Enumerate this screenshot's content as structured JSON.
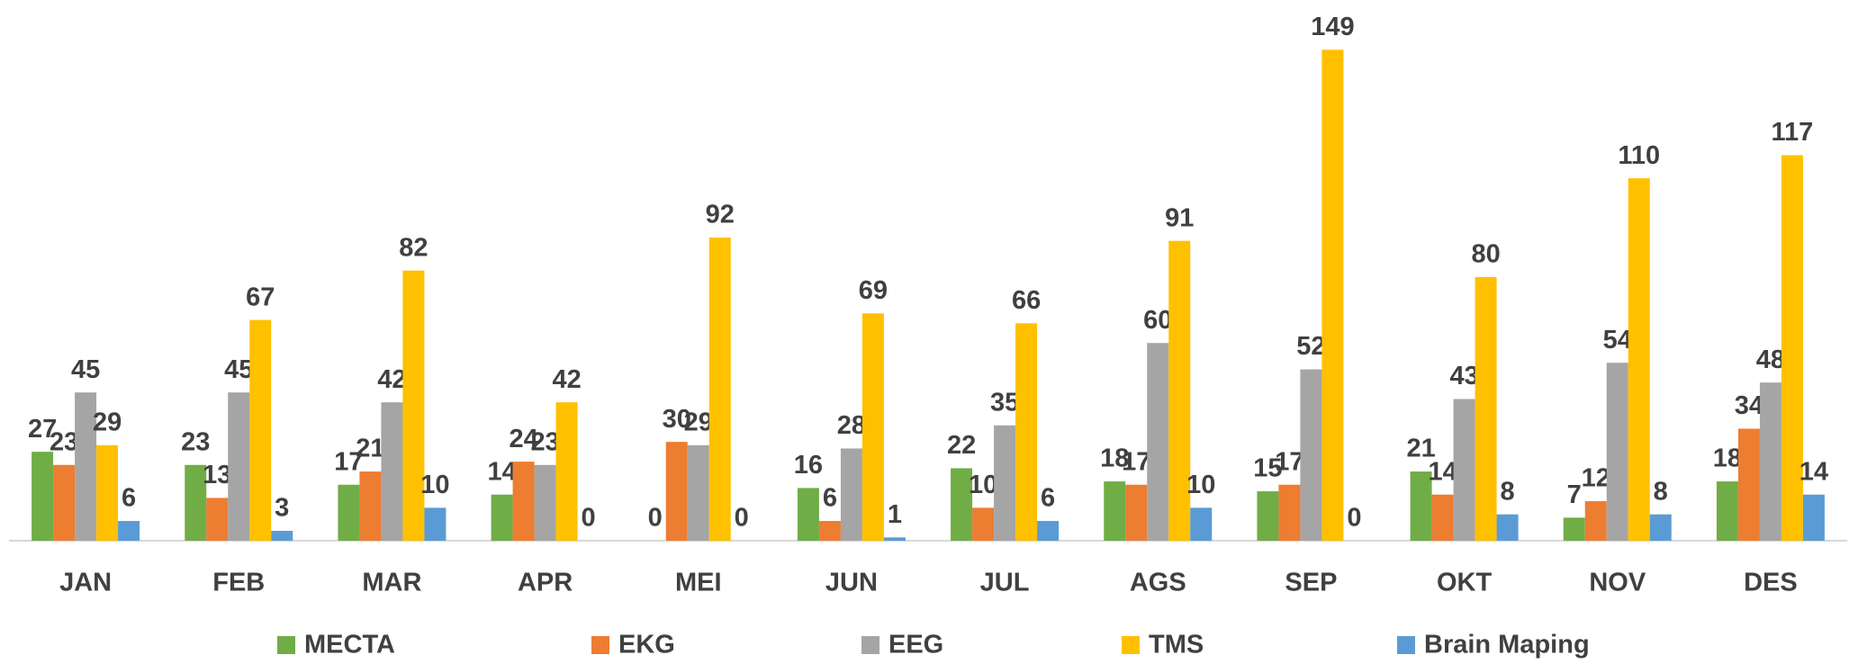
{
  "chart_data": {
    "type": "bar",
    "categories": [
      "JAN",
      "FEB",
      "MAR",
      "APR",
      "MEI",
      "JUN",
      "JUL",
      "AGS",
      "SEP",
      "OKT",
      "NOV",
      "DES"
    ],
    "series": [
      {
        "name": "MECTA",
        "color": "#70ad47",
        "values": [
          27,
          23,
          17,
          14,
          0,
          16,
          22,
          18,
          15,
          21,
          7,
          18
        ]
      },
      {
        "name": "EKG",
        "color": "#ed7d31",
        "values": [
          23,
          13,
          21,
          24,
          30,
          6,
          10,
          17,
          17,
          14,
          12,
          34
        ]
      },
      {
        "name": "EEG",
        "color": "#a5a5a5",
        "values": [
          45,
          45,
          42,
          23,
          29,
          28,
          35,
          60,
          52,
          43,
          54,
          48
        ]
      },
      {
        "name": "TMS",
        "color": "#ffc000",
        "values": [
          29,
          67,
          82,
          42,
          92,
          69,
          66,
          91,
          149,
          80,
          110,
          117
        ]
      },
      {
        "name": "Brain Maping",
        "color": "#5b9bd5",
        "values": [
          6,
          3,
          10,
          0,
          0,
          1,
          6,
          10,
          0,
          8,
          8,
          14
        ]
      }
    ],
    "ylim": [
      0,
      160
    ],
    "legend": "bottom"
  }
}
